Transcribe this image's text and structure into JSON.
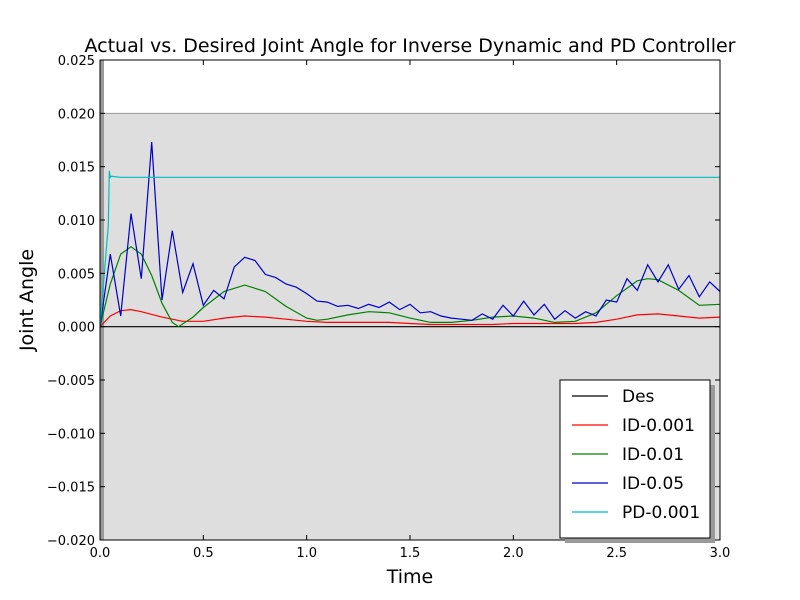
{
  "chart_data": {
    "type": "line",
    "title": "Actual vs. Desired Joint Angle for Inverse Dynamic and PD Controller",
    "xlabel": "Time",
    "ylabel": "Joint Angle",
    "xlim": [
      0.0,
      3.0
    ],
    "ylim": [
      -0.02,
      0.025
    ],
    "xticks": [
      "0.0",
      "0.5",
      "1.0",
      "1.5",
      "2.0",
      "2.5",
      "3.0"
    ],
    "yticks": [
      "−0.020",
      "−0.015",
      "−0.010",
      "−0.005",
      "0.000",
      "0.005",
      "0.010",
      "0.015",
      "0.020",
      "0.025"
    ],
    "grid": false,
    "legend_position": "lower-right",
    "shaded_region": {
      "y_from": -0.02,
      "y_to": 0.02,
      "color": "#dedede"
    },
    "series": [
      {
        "name": "Des",
        "color": "#000000",
        "x": [
          0.0,
          3.0
        ],
        "y": [
          0.0,
          0.0
        ]
      },
      {
        "name": "ID-0.001",
        "color": "#ff0000",
        "x": [
          0.0,
          0.05,
          0.1,
          0.15,
          0.2,
          0.3,
          0.4,
          0.5,
          0.6,
          0.7,
          0.8,
          0.9,
          1.0,
          1.1,
          1.2,
          1.3,
          1.4,
          1.5,
          1.6,
          1.7,
          1.8,
          1.9,
          2.0,
          2.1,
          2.2,
          2.3,
          2.4,
          2.5,
          2.6,
          2.7,
          2.8,
          2.9,
          3.0
        ],
        "y": [
          0.0,
          0.001,
          0.0015,
          0.0016,
          0.0014,
          0.0009,
          0.0005,
          0.0005,
          0.0008,
          0.001,
          0.0009,
          0.0007,
          0.0005,
          0.0004,
          0.0004,
          0.0004,
          0.0004,
          0.0003,
          0.0002,
          0.0002,
          0.0002,
          0.0002,
          0.0003,
          0.0003,
          0.0003,
          0.0003,
          0.0004,
          0.0007,
          0.0011,
          0.0012,
          0.001,
          0.0008,
          0.0009
        ]
      },
      {
        "name": "ID-0.01",
        "color": "#008000",
        "x": [
          0.0,
          0.05,
          0.1,
          0.15,
          0.2,
          0.25,
          0.3,
          0.35,
          0.38,
          0.45,
          0.5,
          0.6,
          0.7,
          0.8,
          0.9,
          1.0,
          1.05,
          1.1,
          1.2,
          1.3,
          1.4,
          1.5,
          1.6,
          1.7,
          1.8,
          1.9,
          2.0,
          2.1,
          2.2,
          2.3,
          2.4,
          2.5,
          2.6,
          2.65,
          2.7,
          2.8,
          2.9,
          3.0
        ],
        "y": [
          0.0,
          0.004,
          0.0068,
          0.0075,
          0.0068,
          0.0048,
          0.0022,
          0.0004,
          0.0,
          0.0009,
          0.0018,
          0.0033,
          0.0039,
          0.0033,
          0.0019,
          0.0008,
          0.0006,
          0.0007,
          0.0011,
          0.0014,
          0.0013,
          0.0008,
          0.0004,
          0.0004,
          0.0006,
          0.0009,
          0.001,
          0.0008,
          0.0004,
          0.0005,
          0.0013,
          0.0029,
          0.0043,
          0.0045,
          0.0044,
          0.0034,
          0.002,
          0.0021
        ]
      },
      {
        "name": "ID-0.05",
        "color": "#0000cc",
        "x": [
          0.0,
          0.05,
          0.1,
          0.15,
          0.2,
          0.25,
          0.3,
          0.35,
          0.4,
          0.45,
          0.5,
          0.55,
          0.6,
          0.65,
          0.7,
          0.75,
          0.8,
          0.85,
          0.9,
          0.95,
          1.0,
          1.05,
          1.1,
          1.15,
          1.2,
          1.25,
          1.3,
          1.35,
          1.4,
          1.45,
          1.5,
          1.55,
          1.6,
          1.65,
          1.7,
          1.75,
          1.8,
          1.85,
          1.9,
          1.95,
          2.0,
          2.05,
          2.1,
          2.15,
          2.2,
          2.25,
          2.3,
          2.35,
          2.4,
          2.45,
          2.5,
          2.55,
          2.6,
          2.65,
          2.7,
          2.75,
          2.8,
          2.85,
          2.9,
          2.95,
          3.0
        ],
        "y": [
          0.0,
          0.0068,
          0.001,
          0.0106,
          0.0045,
          0.0173,
          0.0025,
          0.009,
          0.0032,
          0.0059,
          0.002,
          0.0034,
          0.0026,
          0.0056,
          0.0065,
          0.0062,
          0.0049,
          0.0046,
          0.004,
          0.0037,
          0.0031,
          0.0024,
          0.0023,
          0.0019,
          0.002,
          0.0017,
          0.0021,
          0.0018,
          0.0023,
          0.0016,
          0.0021,
          0.0013,
          0.0014,
          0.001,
          0.0008,
          0.0007,
          0.0006,
          0.0012,
          0.0007,
          0.002,
          0.001,
          0.0024,
          0.0011,
          0.0021,
          0.0007,
          0.0015,
          0.0008,
          0.0014,
          0.001,
          0.0025,
          0.0023,
          0.0045,
          0.0034,
          0.0058,
          0.0042,
          0.0058,
          0.0035,
          0.0048,
          0.0028,
          0.0042,
          0.0033
        ]
      },
      {
        "name": "PD-0.001",
        "color": "#00bfbf",
        "x": [
          0.0,
          0.04,
          0.045,
          0.05,
          0.055,
          0.1,
          0.5,
          1.0,
          1.5,
          2.0,
          2.5,
          3.0
        ],
        "y": [
          0.0,
          0.0095,
          0.0146,
          0.014,
          0.0141,
          0.014,
          0.014,
          0.014,
          0.014,
          0.014,
          0.014,
          0.014
        ]
      }
    ]
  }
}
